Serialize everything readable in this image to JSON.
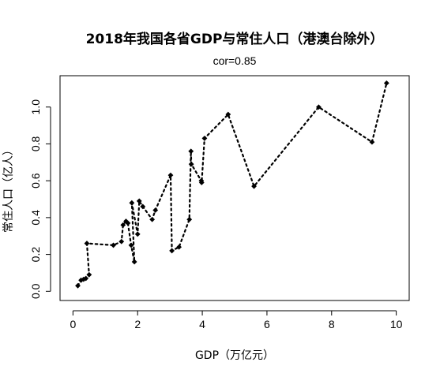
{
  "chart_data": {
    "type": "line",
    "title": "2018年我国各省GDP与常住人口（港澳台除外）",
    "subtitle": "cor=0.85",
    "xlabel": "GDP（万亿元）",
    "ylabel": "常住人口（亿人）",
    "xlim": [
      -0.4,
      10.4
    ],
    "ylim": [
      -0.05,
      1.17
    ],
    "xticks": [
      "0",
      "2",
      "4",
      "6",
      "8",
      "10"
    ],
    "yticks": [
      "0.0",
      "0.2",
      "0.4",
      "0.6",
      "0.8",
      "1.0"
    ],
    "grid": false,
    "line_style": "dotted",
    "marker": "filled-diamond",
    "series": [
      {
        "x": [
          0.15,
          0.25,
          0.33,
          0.4,
          0.5,
          0.43,
          1.25,
          1.5,
          1.55,
          1.64,
          1.7,
          1.8,
          1.9,
          1.82,
          2.0,
          2.05,
          2.16,
          2.45,
          2.55,
          3.02,
          3.06,
          3.28,
          3.6,
          3.65,
          3.66,
          3.97,
          3.98,
          4.07,
          4.8,
          5.6,
          7.6,
          9.25,
          9.7
        ],
        "y": [
          0.03,
          0.06,
          0.065,
          0.07,
          0.09,
          0.26,
          0.25,
          0.27,
          0.36,
          0.38,
          0.37,
          0.25,
          0.16,
          0.48,
          0.31,
          0.49,
          0.46,
          0.39,
          0.44,
          0.63,
          0.22,
          0.24,
          0.39,
          0.76,
          0.69,
          0.6,
          0.59,
          0.83,
          0.96,
          0.57,
          1.0,
          0.81,
          1.13
        ]
      }
    ]
  }
}
